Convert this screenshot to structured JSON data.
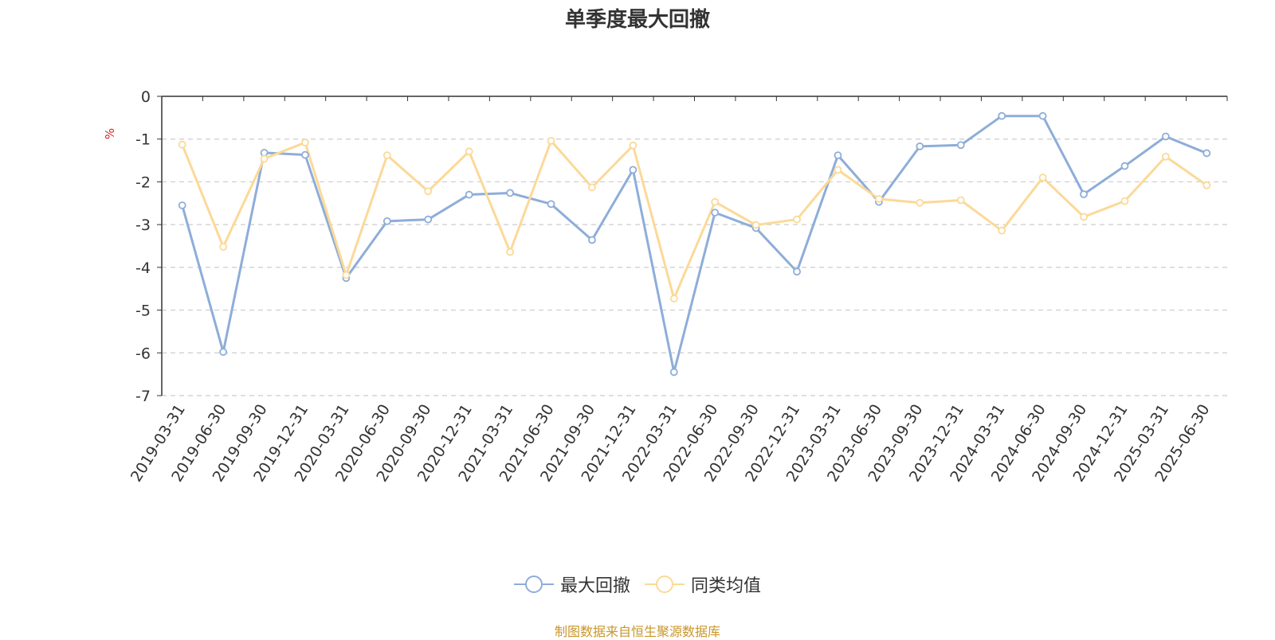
{
  "chart_data": {
    "type": "line",
    "title": "单季度最大回撤",
    "unit": "%",
    "ylim": [
      -7,
      0
    ],
    "yticks": [
      0,
      -1,
      -2,
      -3,
      -4,
      -5,
      -6,
      -7
    ],
    "grid": true,
    "legend_position": "bottom-center",
    "categories": [
      "2019-03-31",
      "2019-06-30",
      "2019-09-30",
      "2019-12-31",
      "2020-03-31",
      "2020-06-30",
      "2020-09-30",
      "2020-12-31",
      "2021-03-31",
      "2021-06-30",
      "2021-09-30",
      "2021-12-31",
      "2022-03-31",
      "2022-06-30",
      "2022-09-30",
      "2022-12-31",
      "2023-03-31",
      "2023-06-30",
      "2023-09-30",
      "2023-12-31",
      "2024-03-31",
      "2024-06-30",
      "2024-09-30",
      "2024-12-31",
      "2025-03-31",
      "2025-06-30"
    ],
    "series": [
      {
        "name": "最大回撤",
        "color": "#8eadd9",
        "values": [
          -2.55,
          -5.98,
          -1.32,
          -1.37,
          -4.25,
          -2.92,
          -2.88,
          -2.3,
          -2.26,
          -2.52,
          -3.36,
          -1.72,
          -6.45,
          -2.72,
          -3.08,
          -4.1,
          -1.38,
          -2.47,
          -1.17,
          -1.14,
          -0.46,
          -0.46,
          -2.29,
          -1.63,
          -0.94,
          -1.33
        ]
      },
      {
        "name": "同类均值",
        "color": "#fbd998",
        "values": [
          -1.13,
          -3.52,
          -1.46,
          -1.08,
          -4.18,
          -1.38,
          -2.22,
          -1.29,
          -3.64,
          -1.04,
          -2.13,
          -1.15,
          -4.73,
          -2.47,
          -3.01,
          -2.88,
          -1.72,
          -2.4,
          -2.49,
          -2.43,
          -3.14,
          -1.9,
          -2.82,
          -2.45,
          -1.41,
          -2.08
        ]
      }
    ]
  },
  "source_note": "制图数据来自恒生聚源数据库"
}
